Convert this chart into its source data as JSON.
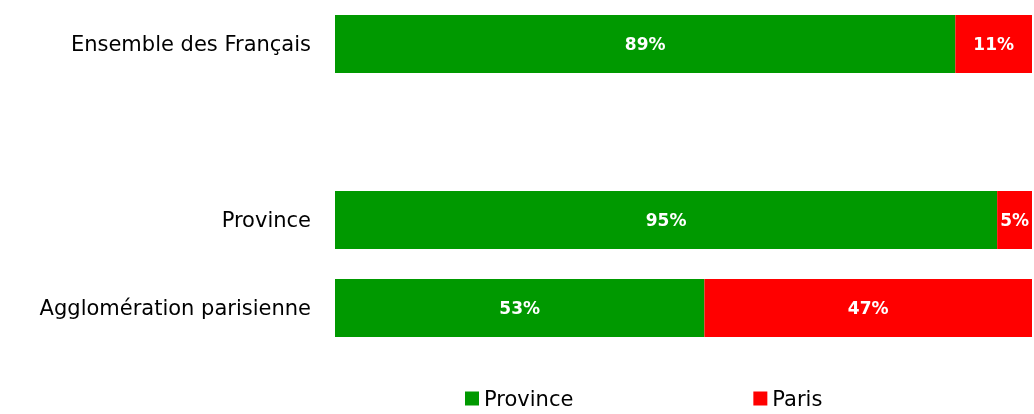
{
  "chart_data": {
    "type": "bar",
    "orientation": "horizontal",
    "stacked": true,
    "legend": "bottom",
    "categories": [
      "Ensemble des Français",
      null,
      "Province",
      "Agglomération parisienne"
    ],
    "series": [
      {
        "name": "Province",
        "color": "#009900",
        "values": [
          89,
          null,
          95,
          53
        ],
        "value_labels": [
          "89%",
          null,
          "95%",
          "53%"
        ]
      },
      {
        "name": "Paris",
        "color": "#ff0000",
        "values": [
          11,
          null,
          5,
          47
        ],
        "value_labels": [
          "11%",
          null,
          "5%",
          "47%"
        ]
      }
    ]
  }
}
